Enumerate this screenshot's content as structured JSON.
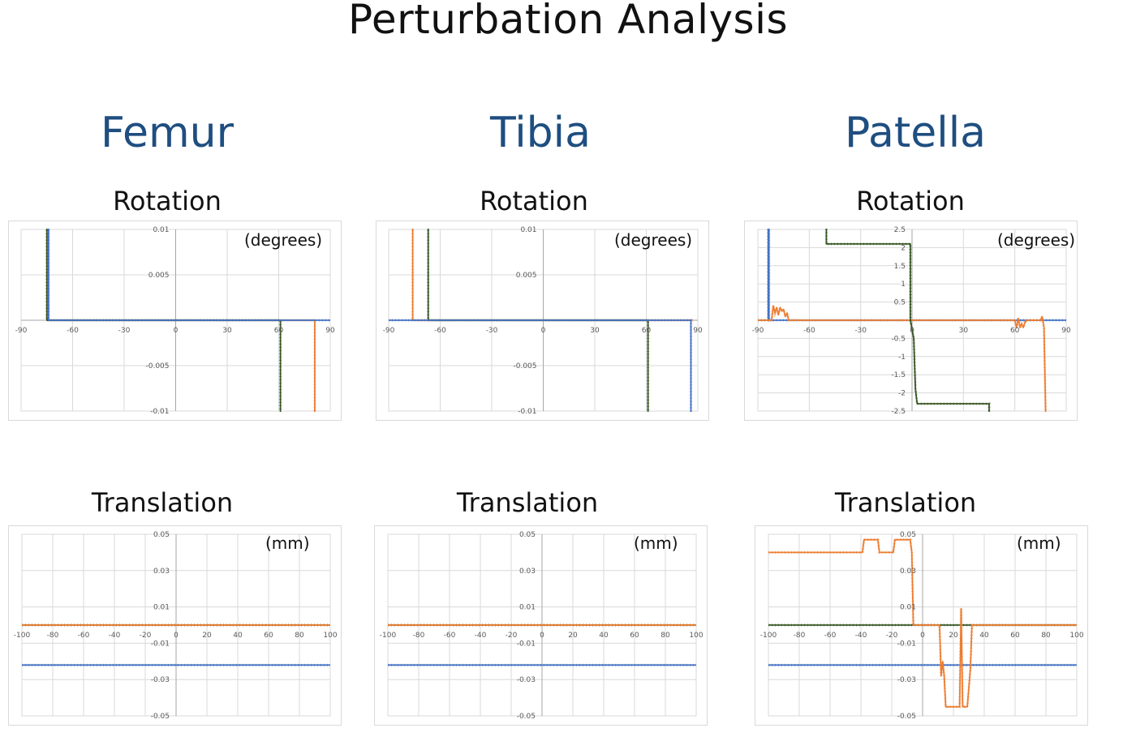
{
  "page": {
    "title": "Perturbation Analysis",
    "columns": [
      "Femur",
      "Tibia",
      "Patella"
    ],
    "row_labels": [
      "Rotation",
      "Translation"
    ]
  },
  "colors": {
    "blue": "#4472c4",
    "orange": "#ed7d31",
    "green": "#375623",
    "grid": "#d9d9d9",
    "axis": "#a6a6a6"
  },
  "chart_data": [
    {
      "id": "femur-rotation",
      "type": "line",
      "title": "Rotation",
      "unit": "(degrees)",
      "xlim": [
        -90,
        90
      ],
      "ylim": [
        -0.01,
        0.01
      ],
      "xticks": [
        -90,
        -60,
        -30,
        0,
        30,
        60,
        90
      ],
      "xtick_labels": [
        "-90",
        "-60",
        "-30",
        "0",
        "30",
        "60",
        "90"
      ],
      "yticks": [
        0.01,
        0.005,
        -0.005,
        -0.01
      ],
      "ytick_labels": [
        "0.01",
        "0.005",
        "-0.005",
        "-0.01"
      ],
      "series": [
        {
          "name": "orange",
          "color": "orange",
          "points": [
            [
              -75,
              0.011
            ],
            [
              -75,
              0
            ],
            [
              0,
              0
            ],
            [
              81,
              0
            ],
            [
              81,
              -0.011
            ]
          ]
        },
        {
          "name": "green",
          "color": "green",
          "points": [
            [
              -75,
              0.011
            ],
            [
              -75,
              0
            ],
            [
              61,
              0
            ],
            [
              61,
              -0.011
            ]
          ]
        },
        {
          "name": "blue",
          "color": "blue",
          "points": [
            [
              -74,
              0.011
            ],
            [
              -74,
              0
            ],
            [
              90,
              0
            ]
          ]
        }
      ]
    },
    {
      "id": "tibia-rotation",
      "type": "line",
      "title": "Rotation",
      "unit": "(degrees)",
      "xlim": [
        -90,
        90
      ],
      "ylim": [
        -0.01,
        0.01
      ],
      "xticks": [
        -90,
        -60,
        -30,
        0,
        30,
        60,
        90
      ],
      "xtick_labels": [
        "-90",
        "-60",
        "-30",
        "0",
        "30",
        "60",
        "90"
      ],
      "yticks": [
        0.01,
        0.005,
        -0.005,
        -0.01
      ],
      "ytick_labels": [
        "0.01",
        "0.005",
        "-0.005",
        "-0.01"
      ],
      "series": [
        {
          "name": "orange",
          "color": "orange",
          "points": [
            [
              -76,
              0.011
            ],
            [
              -76,
              0
            ],
            [
              87,
              0
            ]
          ]
        },
        {
          "name": "green",
          "color": "green",
          "points": [
            [
              -67,
              0.011
            ],
            [
              -67,
              0
            ],
            [
              61,
              0
            ],
            [
              61,
              -0.011
            ]
          ]
        },
        {
          "name": "blue",
          "color": "blue",
          "points": [
            [
              -90,
              0
            ],
            [
              86,
              0
            ],
            [
              86,
              -0.011
            ]
          ]
        }
      ]
    },
    {
      "id": "patella-rotation",
      "type": "line",
      "title": "Rotation",
      "unit": "(degrees)",
      "xlim": [
        -90,
        90
      ],
      "ylim": [
        -2.5,
        2.5
      ],
      "xticks": [
        -90,
        -60,
        -30,
        0,
        30,
        60,
        90
      ],
      "xtick_labels": [
        "-90",
        "-60",
        "-30",
        "0",
        "30",
        "60",
        "90"
      ],
      "yticks": [
        2.5,
        2,
        1.5,
        1,
        0.5,
        -0.5,
        -1,
        -1.5,
        -2,
        -2.5
      ],
      "ytick_labels": [
        "2.5",
        "2",
        "1.5",
        "1",
        "0.5",
        "-0.5",
        "-1",
        "-1.5",
        "-2",
        "-2.5"
      ],
      "series": [
        {
          "name": "blue",
          "color": "blue",
          "points": [
            [
              -90,
              0
            ],
            [
              -84,
              0
            ],
            [
              -84,
              2.6
            ],
            [
              -83.5,
              2.6
            ],
            [
              -83.5,
              0
            ],
            [
              90,
              0
            ]
          ]
        },
        {
          "name": "orange",
          "color": "orange",
          "points": [
            [
              -90,
              0
            ],
            [
              -82,
              0
            ],
            [
              -81,
              0.4
            ],
            [
              -80,
              0.2
            ],
            [
              -79,
              0.35
            ],
            [
              -78,
              0.15
            ],
            [
              -77,
              0.35
            ],
            [
              -76,
              0.25
            ],
            [
              -75,
              0.3
            ],
            [
              -74,
              0.1
            ],
            [
              -73,
              0.2
            ],
            [
              -72,
              0
            ],
            [
              60,
              0
            ],
            [
              61,
              -0.2
            ],
            [
              62,
              0.05
            ],
            [
              63,
              -0.2
            ],
            [
              64,
              -0.1
            ],
            [
              65,
              -0.2
            ],
            [
              66,
              -0.05
            ],
            [
              67,
              0
            ],
            [
              75,
              0
            ],
            [
              76,
              0.1
            ],
            [
              77,
              -0.2
            ],
            [
              78,
              -2.6
            ]
          ]
        },
        {
          "name": "green",
          "color": "green",
          "points": [
            [
              -50,
              2.6
            ],
            [
              -50,
              2.1
            ],
            [
              -1,
              2.1
            ],
            [
              -1,
              0
            ],
            [
              1,
              -0.5
            ],
            [
              2,
              -1.9
            ],
            [
              3,
              -2.3
            ],
            [
              45,
              -2.3
            ],
            [
              45,
              -2.6
            ]
          ]
        }
      ]
    },
    {
      "id": "femur-translation",
      "type": "line",
      "title": "Translation",
      "unit": "(mm)",
      "xlim": [
        -100,
        100
      ],
      "ylim": [
        -0.05,
        0.05
      ],
      "xticks": [
        -100,
        -80,
        -60,
        -40,
        -20,
        0,
        20,
        40,
        60,
        80,
        100
      ],
      "xtick_labels": [
        "-100",
        "-80",
        "-60",
        "-40",
        "-20",
        "0",
        "20",
        "40",
        "60",
        "80",
        "100"
      ],
      "yticks": [
        0.05,
        0.03,
        0.01,
        -0.01,
        -0.03,
        -0.05
      ],
      "ytick_labels": [
        "0.05",
        "0.03",
        "0.01",
        "-0.01",
        "-0.03",
        "-0.05"
      ],
      "series": [
        {
          "name": "green",
          "color": "green",
          "points": [
            [
              -100,
              0
            ],
            [
              100,
              0
            ]
          ]
        },
        {
          "name": "orange",
          "color": "orange",
          "points": [
            [
              -100,
              0
            ],
            [
              100,
              0
            ]
          ]
        },
        {
          "name": "blue",
          "color": "blue",
          "points": [
            [
              -100,
              -0.022
            ],
            [
              100,
              -0.022
            ]
          ]
        }
      ]
    },
    {
      "id": "tibia-translation",
      "type": "line",
      "title": "Translation",
      "unit": "(mm)",
      "xlim": [
        -100,
        100
      ],
      "ylim": [
        -0.05,
        0.05
      ],
      "xticks": [
        -100,
        -80,
        -60,
        -40,
        -20,
        0,
        20,
        40,
        60,
        80,
        100
      ],
      "xtick_labels": [
        "-100",
        "-80",
        "-60",
        "-40",
        "-20",
        "0",
        "20",
        "40",
        "60",
        "80",
        "100"
      ],
      "yticks": [
        0.05,
        0.03,
        0.01,
        -0.01,
        -0.03,
        -0.05
      ],
      "ytick_labels": [
        "0.05",
        "0.03",
        "0.01",
        "-0.01",
        "-0.03",
        "-0.05"
      ],
      "series": [
        {
          "name": "green",
          "color": "green",
          "points": [
            [
              -100,
              0
            ],
            [
              100,
              0
            ]
          ]
        },
        {
          "name": "orange",
          "color": "orange",
          "points": [
            [
              -100,
              0
            ],
            [
              100,
              0
            ]
          ]
        },
        {
          "name": "blue",
          "color": "blue",
          "points": [
            [
              -100,
              -0.022
            ],
            [
              100,
              -0.022
            ]
          ]
        }
      ]
    },
    {
      "id": "patella-translation",
      "type": "line",
      "title": "Translation",
      "unit": "(mm)",
      "xlim": [
        -100,
        100
      ],
      "ylim": [
        -0.05,
        0.05
      ],
      "xticks": [
        -100,
        -80,
        -60,
        -40,
        -20,
        0,
        20,
        40,
        60,
        80,
        100
      ],
      "xtick_labels": [
        "-100",
        "-80",
        "-60",
        "-40",
        "-20",
        "0",
        "20",
        "40",
        "60",
        "80",
        "100"
      ],
      "yticks": [
        0.05,
        0.03,
        0.01,
        -0.01,
        -0.03,
        -0.05
      ],
      "ytick_labels": [
        "0.05",
        "0.03",
        "0.01",
        "-0.01",
        "-0.03",
        "-0.05"
      ],
      "series": [
        {
          "name": "green",
          "color": "green",
          "points": [
            [
              -100,
              0
            ],
            [
              100,
              0
            ]
          ]
        },
        {
          "name": "blue",
          "color": "blue",
          "points": [
            [
              -100,
              -0.022
            ],
            [
              100,
              -0.022
            ]
          ]
        },
        {
          "name": "orange",
          "color": "orange",
          "points": [
            [
              -100,
              0.04
            ],
            [
              -39,
              0.04
            ],
            [
              -38,
              0.047
            ],
            [
              -29,
              0.047
            ],
            [
              -28,
              0.04
            ],
            [
              -19,
              0.04
            ],
            [
              -18,
              0.047
            ],
            [
              -8,
              0.047
            ],
            [
              -7,
              0.04
            ],
            [
              -6,
              0
            ],
            [
              11,
              0
            ],
            [
              12,
              -0.028
            ],
            [
              13,
              -0.02
            ],
            [
              14,
              -0.028
            ],
            [
              15,
              -0.045
            ],
            [
              24,
              -0.045
            ],
            [
              25,
              0.009
            ],
            [
              26,
              -0.045
            ],
            [
              29,
              -0.045
            ],
            [
              31,
              -0.024
            ],
            [
              32,
              0
            ],
            [
              100,
              0
            ]
          ]
        }
      ]
    }
  ]
}
